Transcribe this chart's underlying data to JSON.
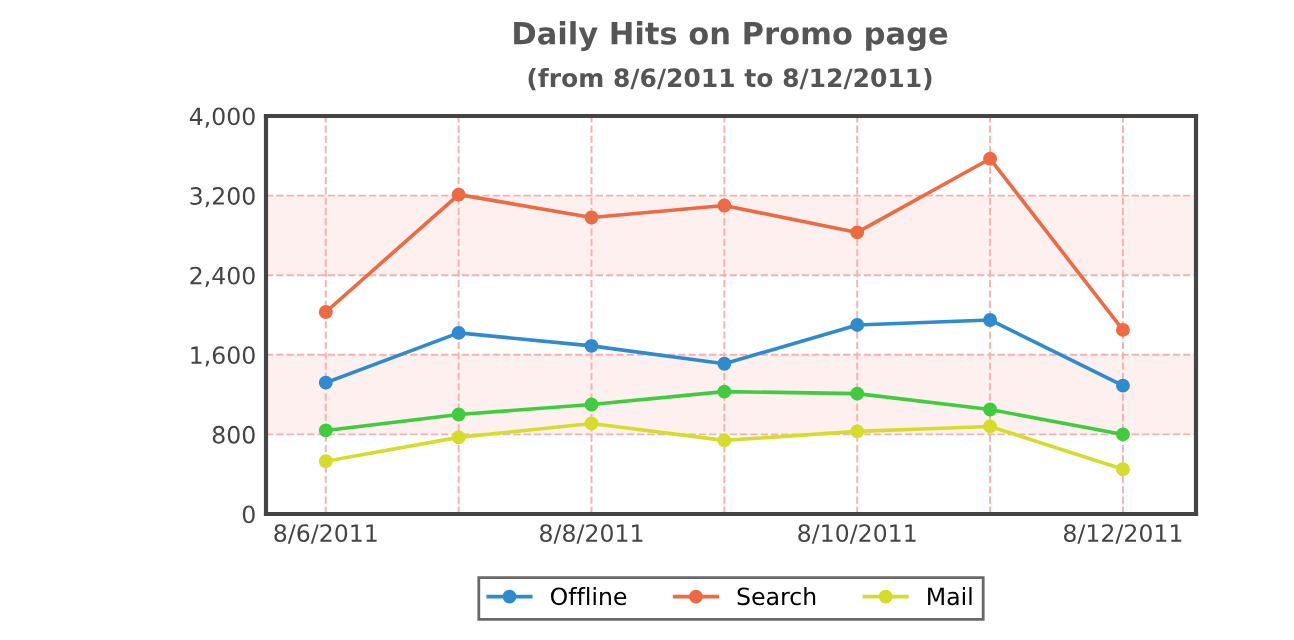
{
  "chart_data": {
    "type": "line",
    "title": "Daily Hits on Promo page",
    "subtitle": "(from 8/6/2011 to 8/12/2011)",
    "categories": [
      "8/6/2011",
      null,
      "8/8/2011",
      null,
      "8/10/2011",
      null,
      "8/12/2011"
    ],
    "series": [
      {
        "name": "Offline",
        "color": "#2e8bd0",
        "values": [
          1320,
          1820,
          1690,
          1510,
          1900,
          1950,
          1290
        ]
      },
      {
        "name": "Search",
        "color": "#ee6a43",
        "values": [
          2030,
          3210,
          2980,
          3100,
          2830,
          3570,
          1850
        ]
      },
      {
        "color": "#3fcc3f",
        "values": [
          840,
          1000,
          1100,
          1230,
          1210,
          1050,
          800
        ]
      },
      {
        "name": "Mail",
        "color": "#d6dc2a",
        "values": [
          530,
          770,
          910,
          740,
          830,
          880,
          450
        ]
      }
    ],
    "ylim": [
      0,
      4000
    ],
    "yticks": [
      0,
      {
        "value": 800,
        "label": "800"
      },
      {
        "value": 1600,
        "label": "1,600"
      },
      {
        "value": 2400,
        "label": "2,400"
      },
      {
        "value": 3200,
        "label": "3,200"
      },
      {
        "value": 4000,
        "label": "4,000"
      }
    ],
    "bands": [
      {
        "axis": "y",
        "from": 800,
        "to": 1600,
        "color": "#fdf0ee"
      },
      {
        "axis": "y",
        "from": 2400,
        "to": 3200,
        "color": "#fdf0ee"
      }
    ],
    "grid": true,
    "legend": "bottom",
    "marker": "circle",
    "line_style": "solid"
  }
}
